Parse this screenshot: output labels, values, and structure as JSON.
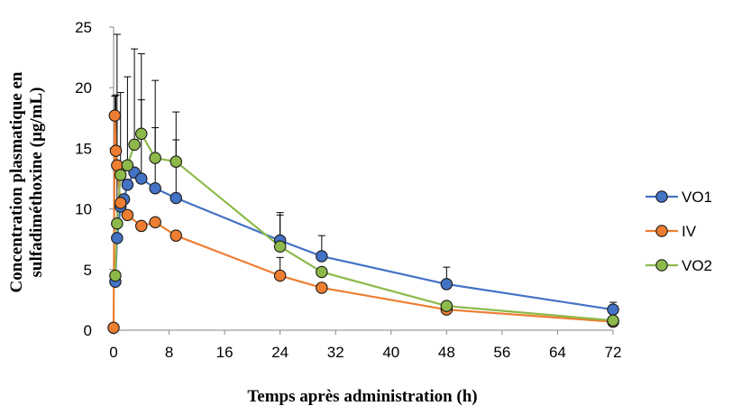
{
  "chart_data": {
    "type": "line",
    "title": "",
    "xlabel": "Temps après administration (h)",
    "ylabel_lines": [
      "Concentration plasmatique en",
      "sulfadiméthoxine (µg/mL)"
    ],
    "xlim": [
      0,
      72
    ],
    "ylim": [
      0,
      25
    ],
    "xticks": [
      0,
      8,
      16,
      24,
      32,
      40,
      48,
      56,
      64,
      72
    ],
    "yticks": [
      0,
      5,
      10,
      15,
      20,
      25
    ],
    "grid": false,
    "legend_position": "right",
    "series": [
      {
        "name": "VO1",
        "color": "#4472C4",
        "x": [
          0.25,
          0.5,
          1,
          1.5,
          2,
          3,
          4,
          6,
          9,
          24,
          30,
          48,
          72
        ],
        "y": [
          4.0,
          7.6,
          10.2,
          10.8,
          12.0,
          13.0,
          12.5,
          11.7,
          10.9,
          7.4,
          6.1,
          3.8,
          1.7
        ],
        "error": [
          0,
          0,
          0,
          0,
          0,
          0,
          6.5,
          5.0,
          4.8,
          2.3,
          1.7,
          1.4,
          0.6
        ]
      },
      {
        "name": "IV",
        "color": "#ED7D31",
        "x": [
          0,
          0.17,
          0.33,
          0.5,
          1,
          2,
          4,
          6,
          9,
          24,
          30,
          48,
          72
        ],
        "y": [
          0.2,
          17.7,
          14.8,
          13.6,
          10.5,
          9.5,
          8.6,
          8.9,
          7.8,
          4.5,
          3.5,
          1.7,
          0.7
        ],
        "error": [
          0,
          1.6,
          4.6,
          4.2,
          0,
          0,
          0,
          0,
          0,
          1.5,
          0,
          0,
          0
        ]
      },
      {
        "name": "VO2",
        "color": "#8DB94A",
        "x": [
          0.25,
          0.5,
          1,
          2,
          3,
          4,
          6,
          9,
          24,
          30,
          48,
          72
        ],
        "y": [
          4.5,
          8.8,
          12.8,
          13.6,
          15.3,
          16.2,
          14.2,
          13.9,
          6.9,
          4.8,
          2.0,
          0.8
        ],
        "error": [
          0,
          15.6,
          6.8,
          7.3,
          7.9,
          6.6,
          6.4,
          4.1,
          2.6,
          0,
          0,
          0
        ]
      }
    ]
  }
}
